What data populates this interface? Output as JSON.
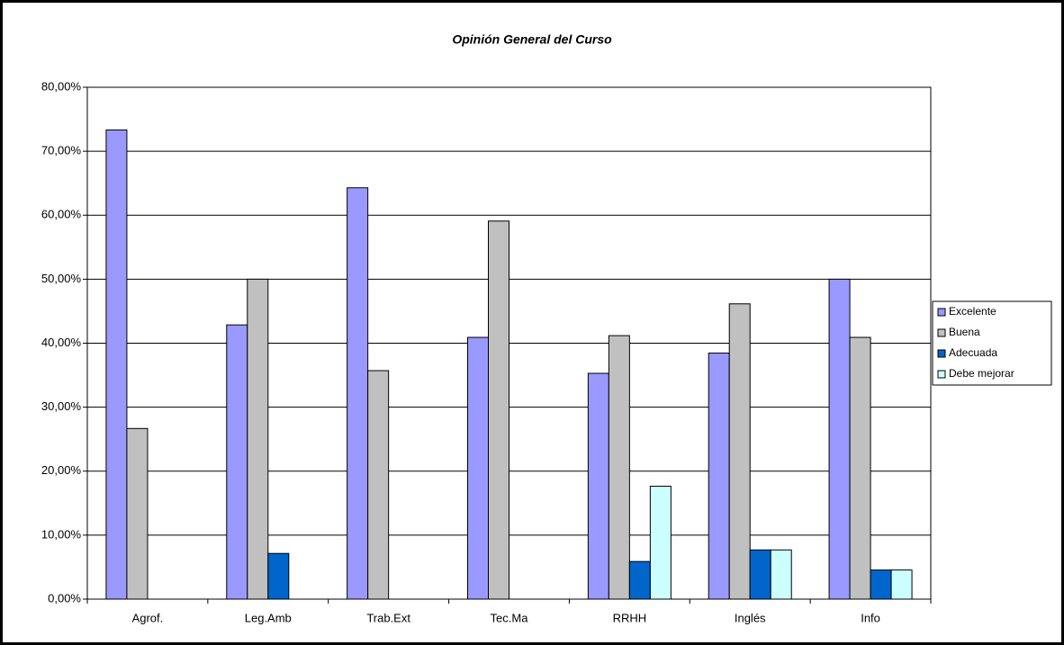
{
  "chart_data": {
    "type": "bar",
    "title": "Opinión General del Curso",
    "categories": [
      "Agrof.",
      "Leg.Amb",
      "Trab.Ext",
      "Tec.Ma",
      "RRHH",
      "Inglés",
      "Info"
    ],
    "series": [
      {
        "name": "Excelente",
        "color": "#9999ff",
        "values": [
          73.33,
          42.86,
          64.29,
          40.91,
          35.29,
          38.46,
          50.0
        ]
      },
      {
        "name": "Buena",
        "color": "#c0c0c0",
        "values": [
          26.67,
          50.0,
          35.71,
          59.09,
          41.18,
          46.15,
          40.91
        ]
      },
      {
        "name": "Adecuada",
        "color": "#0066cc",
        "values": [
          0,
          7.14,
          0,
          0,
          5.88,
          7.69,
          4.55
        ]
      },
      {
        "name": "Debe mejorar",
        "color": "#ccffff",
        "values": [
          0,
          0,
          0,
          0,
          17.65,
          7.69,
          4.55
        ]
      }
    ],
    "ylim": [
      0,
      80
    ],
    "yticks": [
      {
        "value": 0,
        "label": "0,00%"
      },
      {
        "value": 10,
        "label": "10,00%"
      },
      {
        "value": 20,
        "label": "20,00%"
      },
      {
        "value": 30,
        "label": "30,00%"
      },
      {
        "value": 40,
        "label": "40,00%"
      },
      {
        "value": 50,
        "label": "50,00%"
      },
      {
        "value": 60,
        "label": "60,00%"
      },
      {
        "value": 70,
        "label": "70,00%"
      },
      {
        "value": 80,
        "label": "80,00%"
      }
    ],
    "grid": true,
    "legend": "right"
  }
}
